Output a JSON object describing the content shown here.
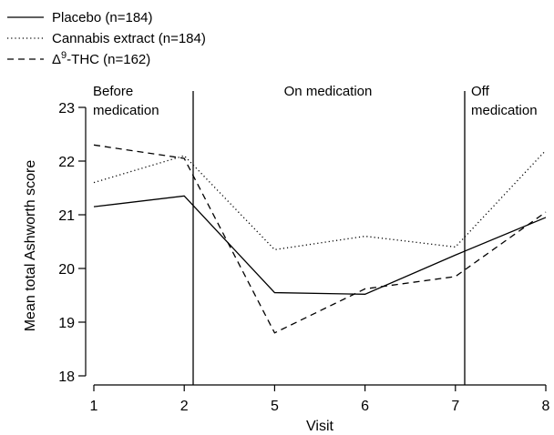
{
  "chart_data": {
    "type": "line",
    "title": "",
    "xlabel": "Visit",
    "ylabel": "Mean total Ashworth score",
    "categories": [
      "1",
      "2",
      "5",
      "6",
      "7",
      "8"
    ],
    "ylim": [
      18,
      23
    ],
    "yticks": [
      "18",
      "19",
      "20",
      "21",
      "22",
      "23"
    ],
    "grid": false,
    "legend_position": "top-left",
    "series": [
      {
        "name": "Placebo (n=184)",
        "line_style": "solid",
        "values": [
          21.15,
          21.35,
          19.55,
          19.52,
          20.25,
          20.95
        ]
      },
      {
        "name": "Cannabis extract (n=184)",
        "line_style": "dotted",
        "values": [
          21.6,
          22.1,
          20.35,
          20.6,
          20.4,
          22.2
        ]
      },
      {
        "name_prefix": "Δ",
        "name_superscript": "9",
        "name_suffix": "-THC (n=162)",
        "line_style": "dashed",
        "values": [
          22.3,
          22.05,
          18.8,
          19.62,
          19.85,
          21.05
        ]
      }
    ],
    "periods": [
      {
        "label_lines": [
          "Before",
          "medication"
        ]
      },
      {
        "label_lines": [
          "On medication"
        ]
      },
      {
        "label_lines": [
          "Off",
          "medication"
        ]
      }
    ],
    "colors": {
      "lines": "#000000",
      "background": "#ffffff"
    }
  }
}
